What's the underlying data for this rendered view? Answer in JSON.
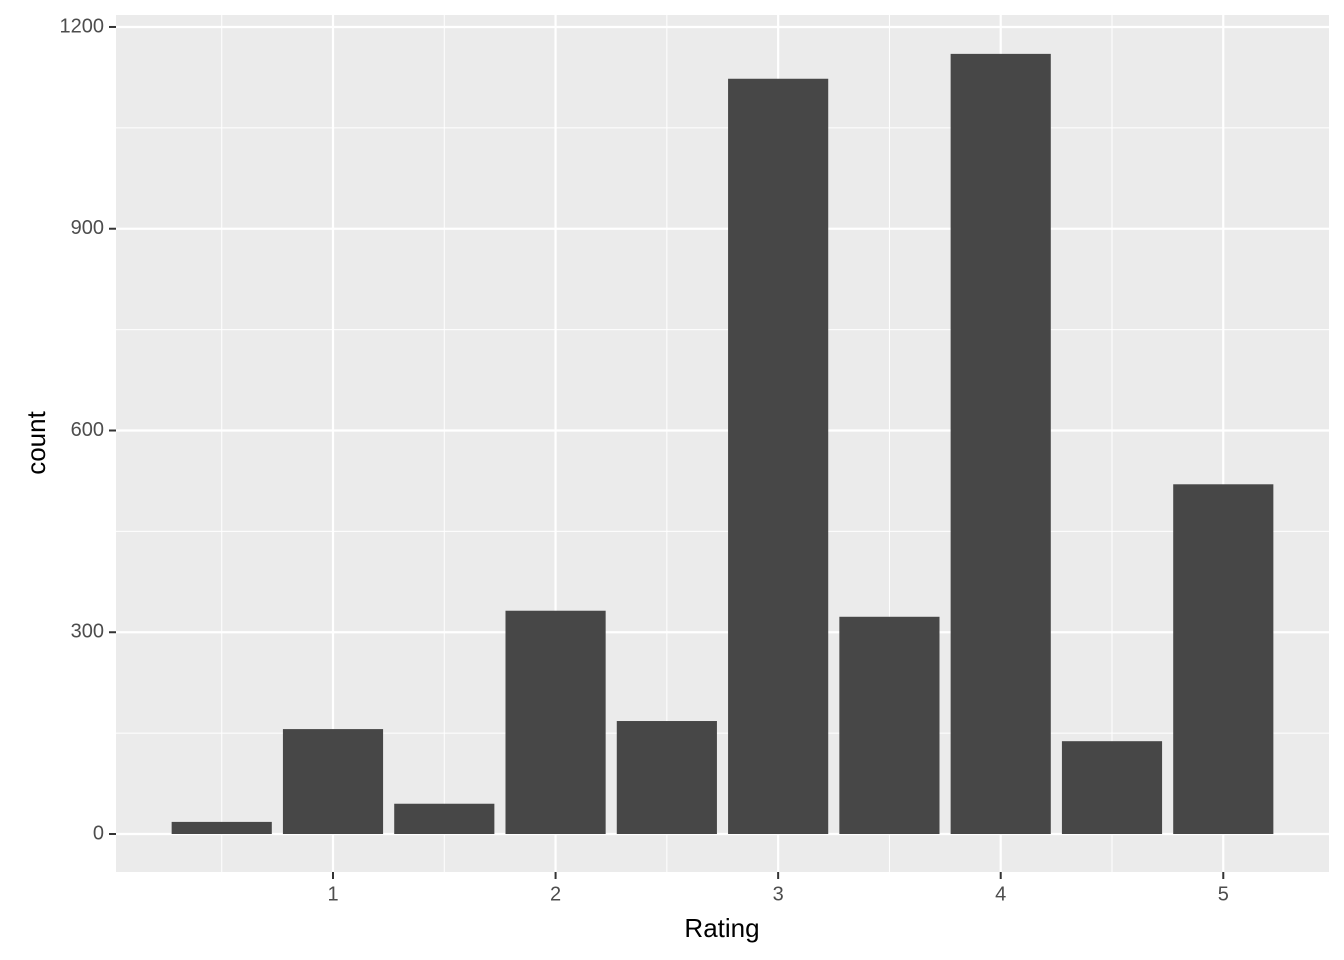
{
  "chart_data": {
    "type": "bar",
    "x": [
      0.5,
      1,
      1.5,
      2,
      2.5,
      3,
      3.5,
      4,
      4.5,
      5
    ],
    "values": [
      18,
      156,
      45,
      332,
      168,
      1123,
      323,
      1160,
      138,
      520
    ],
    "color": "#474747",
    "x_label": "Rating",
    "y_label": "count",
    "xlim": [
      0.025,
      5.475
    ],
    "xticks": [
      1,
      2,
      3,
      4,
      5
    ],
    "ylim": [
      -56.5,
      1217.8
    ],
    "yticks": [
      0,
      300,
      600,
      900,
      1200
    ],
    "grid": true
  }
}
